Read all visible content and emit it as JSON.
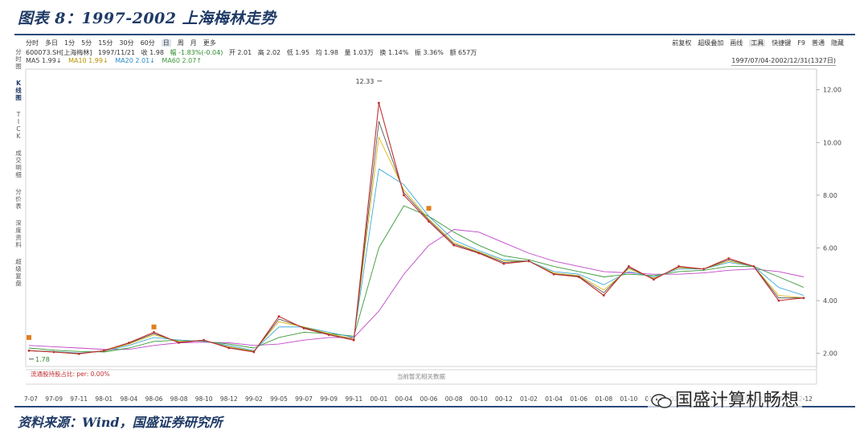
{
  "figure": {
    "title": "图表 8：1997-2002 上海梅林走势",
    "source": "资料来源：Wind，国盛证券研究所",
    "watermark": "国盛计算机畅想"
  },
  "toolbar": {
    "periods": [
      "分时",
      "多日",
      "1分",
      "5分",
      "15分",
      "30分",
      "60分",
      "日",
      "周",
      "月",
      "更多"
    ],
    "active_period": "日",
    "right_items": [
      "前复权",
      "超级叠加",
      "画线",
      "工具",
      "快捷键",
      "F9",
      "普通",
      "隐藏"
    ]
  },
  "side_tabs": [
    "分时图",
    "K线图",
    "TICK",
    "成交明细",
    "分价表",
    "深度资料",
    "超级复盘"
  ],
  "side_tab_active": "K线图",
  "info_line": {
    "code": "600073.SH[上海梅林]",
    "date": "1997/11/21",
    "close": "收 1.98",
    "change": "幅 -1.83%(-0.04)",
    "open": "开 2.01",
    "high": "高 2.02",
    "low": "低 1.95",
    "avg": "均 1.98",
    "volume": "量 1.03万",
    "turnover": "换 1.14%",
    "amplitude": "振 3.36%",
    "amount": "额 657万"
  },
  "ma_line": {
    "ma5": "MA5 1.99↓",
    "ma10": "MA10 1.99↓",
    "ma20": "MA20 2.01↓",
    "ma60": "MA60 2.07↑"
  },
  "range_label": "1997/07/04-2002/12/31(1327日)",
  "indicator_label": "流通股持股占比: per: 0.00%",
  "no_data_label": "当前暂无相关数据",
  "colors": {
    "price": "#c03030",
    "ma5": "#444444",
    "ma10": "#d8b000",
    "ma20": "#2aa0d8",
    "ma60": "#3a9a3a",
    "ma120": "#c048c8",
    "axis": "#c8c8c8",
    "marker": "#e08020"
  },
  "chart_data": {
    "type": "line",
    "title": "",
    "xlabel": "",
    "ylabel": "",
    "ylim": [
      1.5,
      12.6
    ],
    "yticks": [
      2.0,
      4.0,
      6.0,
      8.0,
      10.0,
      12.0
    ],
    "xticks": [
      "97-07",
      "97-09",
      "97-11",
      "98-01",
      "98-04",
      "98-06",
      "98-08",
      "98-10",
      "98-12",
      "99-02",
      "99-05",
      "99-07",
      "99-09",
      "99-11",
      "00-01",
      "00-04",
      "00-06",
      "00-08",
      "00-10",
      "00-12",
      "01-02",
      "01-04",
      "01-06",
      "01-08",
      "01-10",
      "01-12",
      "02-02",
      "02-04",
      "02-06",
      "02-08",
      "02-10",
      "02-12"
    ],
    "annotations": [
      {
        "text": "12.33",
        "x": "00-01",
        "y": 12.33,
        "kind": "max"
      },
      {
        "text": "1.78",
        "x": "97-07",
        "y": 1.78,
        "kind": "min"
      }
    ],
    "series": [
      {
        "name": "price",
        "x": [
          "97-07",
          "97-09",
          "97-11",
          "98-01",
          "98-04",
          "98-06",
          "98-08",
          "98-10",
          "98-12",
          "99-02",
          "99-05",
          "99-07",
          "99-09",
          "99-11",
          "00-01",
          "00-04",
          "00-06",
          "00-08",
          "00-10",
          "00-12",
          "01-02",
          "01-04",
          "01-06",
          "01-08",
          "01-10",
          "01-12",
          "02-02",
          "02-04",
          "02-06",
          "02-08",
          "02-10",
          "02-12"
        ],
        "values": [
          2.1,
          2.05,
          1.98,
          2.1,
          2.4,
          2.8,
          2.4,
          2.5,
          2.2,
          2.05,
          3.4,
          2.95,
          2.7,
          2.5,
          11.5,
          8.0,
          7.0,
          6.1,
          5.8,
          5.4,
          5.5,
          5.0,
          4.9,
          4.2,
          5.3,
          4.8,
          5.3,
          5.2,
          5.6,
          5.3,
          4.0,
          4.1
        ]
      },
      {
        "name": "MA5",
        "values": [
          2.1,
          2.05,
          1.99,
          2.1,
          2.38,
          2.75,
          2.42,
          2.5,
          2.22,
          2.06,
          3.3,
          2.98,
          2.72,
          2.52,
          10.8,
          8.1,
          7.05,
          6.15,
          5.82,
          5.45,
          5.5,
          5.02,
          4.92,
          4.3,
          5.25,
          4.82,
          5.28,
          5.2,
          5.55,
          5.3,
          4.1,
          4.1
        ]
      },
      {
        "name": "MA10",
        "values": [
          2.1,
          2.06,
          1.99,
          2.09,
          2.35,
          2.7,
          2.45,
          2.48,
          2.25,
          2.08,
          3.2,
          3.0,
          2.75,
          2.55,
          10.2,
          8.2,
          7.1,
          6.2,
          5.85,
          5.5,
          5.5,
          5.05,
          4.95,
          4.4,
          5.2,
          4.85,
          5.25,
          5.2,
          5.5,
          5.3,
          4.2,
          4.1
        ]
      },
      {
        "name": "MA20",
        "values": [
          2.1,
          2.07,
          2.01,
          2.08,
          2.3,
          2.6,
          2.5,
          2.45,
          2.3,
          2.1,
          3.0,
          3.0,
          2.8,
          2.6,
          9.0,
          8.4,
          7.2,
          6.3,
          5.9,
          5.55,
          5.5,
          5.1,
          5.0,
          4.6,
          5.1,
          4.9,
          5.2,
          5.2,
          5.45,
          5.3,
          4.5,
          4.2
        ]
      },
      {
        "name": "MA60",
        "values": [
          2.2,
          2.12,
          2.07,
          2.05,
          2.2,
          2.45,
          2.5,
          2.45,
          2.35,
          2.2,
          2.6,
          2.8,
          2.75,
          2.65,
          6.0,
          7.6,
          7.2,
          6.6,
          6.1,
          5.7,
          5.55,
          5.3,
          5.1,
          4.9,
          5.0,
          4.95,
          5.1,
          5.15,
          5.3,
          5.3,
          4.9,
          4.5
        ]
      },
      {
        "name": "MA120",
        "values": [
          2.3,
          2.25,
          2.2,
          2.15,
          2.15,
          2.3,
          2.4,
          2.42,
          2.4,
          2.3,
          2.35,
          2.5,
          2.6,
          2.6,
          3.6,
          5.0,
          6.1,
          6.7,
          6.6,
          6.2,
          5.8,
          5.5,
          5.3,
          5.1,
          5.05,
          5.0,
          5.0,
          5.05,
          5.15,
          5.2,
          5.1,
          4.9
        ]
      }
    ]
  }
}
